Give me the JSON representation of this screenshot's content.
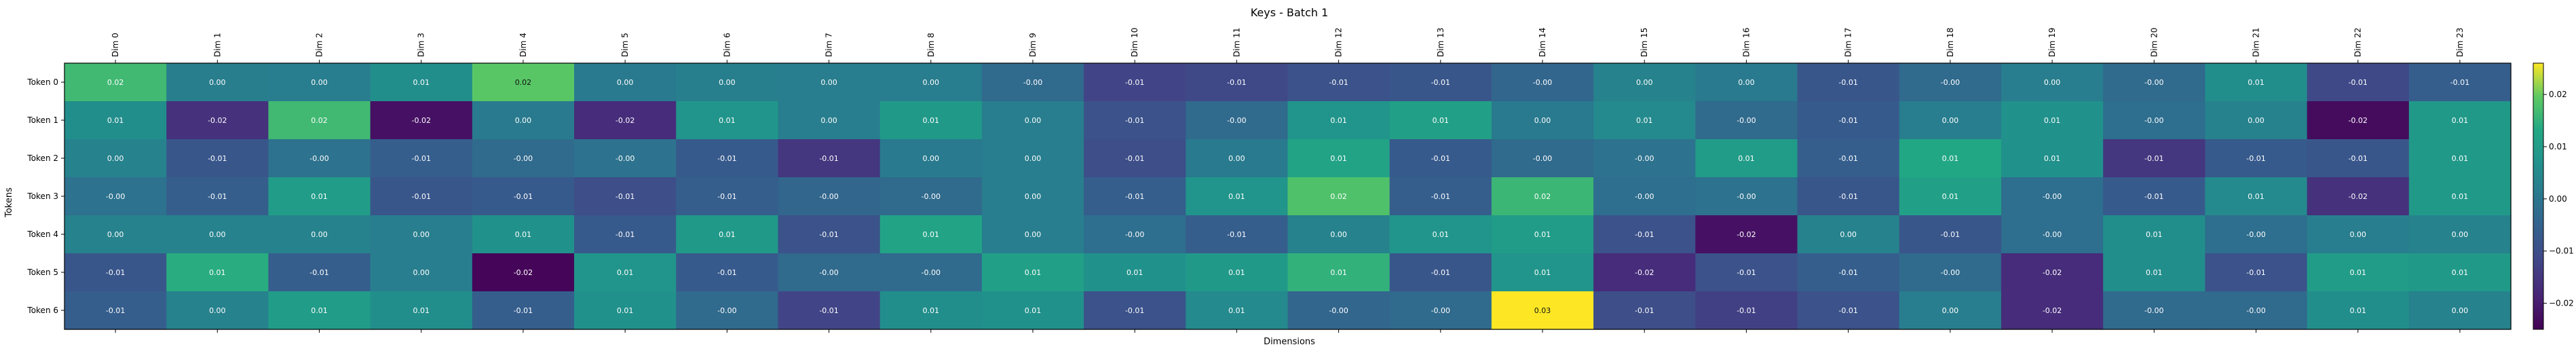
{
  "chart_data": {
    "type": "heatmap",
    "title": "Keys - Batch 1",
    "xlabel": "Dimensions",
    "ylabel": "Tokens",
    "x_labels": [
      "Dim 0",
      "Dim 1",
      "Dim 2",
      "Dim 3",
      "Dim 4",
      "Dim 5",
      "Dim 6",
      "Dim 7",
      "Dim 8",
      "Dim 9",
      "Dim 10",
      "Dim 11",
      "Dim 12",
      "Dim 13",
      "Dim 14",
      "Dim 15",
      "Dim 16",
      "Dim 17",
      "Dim 18",
      "Dim 19",
      "Dim 20",
      "Dim 21",
      "Dim 22",
      "Dim 23"
    ],
    "y_labels": [
      "Token 0",
      "Token 1",
      "Token 2",
      "Token 3",
      "Token 4",
      "Token 5",
      "Token 6"
    ],
    "values": [
      [
        0.0165,
        0.0021,
        0.0018,
        0.0062,
        0.019,
        0.0011,
        0.0024,
        0.0019,
        0.0017,
        -0.003,
        -0.012,
        -0.011,
        -0.009,
        -0.008,
        -0.004,
        0.003,
        0.001,
        -0.008,
        -0.003,
        0.002,
        -0.003,
        0.006,
        -0.011,
        -0.006
      ],
      [
        0.006,
        -0.016,
        0.0165,
        -0.022,
        0.001,
        -0.017,
        0.008,
        0.002,
        0.009,
        0.002,
        -0.009,
        -0.003,
        0.008,
        0.011,
        0.001,
        0.005,
        -0.003,
        -0.007,
        0.002,
        0.007,
        -0.002,
        0.003,
        -0.023,
        0.009
      ],
      [
        0.003,
        -0.008,
        -0.001,
        -0.006,
        -0.003,
        -0.001,
        -0.007,
        -0.015,
        0.001,
        0.002,
        -0.01,
        0.001,
        0.012,
        -0.007,
        -0.003,
        -0.001,
        0.01,
        -0.006,
        0.013,
        0.007,
        -0.015,
        -0.007,
        -0.008,
        0.009
      ],
      [
        -0.001,
        -0.006,
        0.01,
        -0.008,
        -0.007,
        -0.01,
        -0.006,
        -0.004,
        -0.003,
        0.002,
        -0.006,
        0.008,
        0.018,
        -0.006,
        0.016,
        -0.002,
        -0.001,
        -0.008,
        0.011,
        -0.002,
        -0.007,
        0.005,
        -0.016,
        0.009
      ],
      [
        0.003,
        0.003,
        0.003,
        0.002,
        0.007,
        -0.007,
        0.009,
        -0.009,
        0.012,
        0.002,
        -0.002,
        -0.006,
        0.003,
        0.008,
        0.01,
        -0.009,
        -0.022,
        0.003,
        -0.008,
        -0.002,
        0.006,
        -0.002,
        0.002,
        0.003
      ],
      [
        -0.008,
        0.014,
        -0.006,
        0.002,
        -0.024,
        0.008,
        -0.007,
        -0.003,
        -0.003,
        0.011,
        0.007,
        0.009,
        0.015,
        -0.008,
        0.008,
        -0.017,
        -0.009,
        -0.006,
        -0.003,
        -0.017,
        0.006,
        -0.009,
        0.01,
        0.009
      ],
      [
        -0.006,
        0.003,
        0.01,
        0.006,
        -0.006,
        0.007,
        -0.003,
        -0.012,
        0.006,
        0.007,
        -0.009,
        0.005,
        -0.004,
        -0.003,
        0.026,
        -0.01,
        -0.013,
        -0.009,
        0.002,
        -0.017,
        -0.003,
        -0.003,
        0.006,
        0.003
      ]
    ],
    "value_range": [
      -0.025,
      0.026
    ],
    "colormap": "viridis",
    "colorbar_ticks": [
      0.02,
      0.01,
      0.0,
      -0.01,
      -0.02
    ],
    "colorbar_tick_labels": [
      "0.02",
      "0.01",
      "0.00",
      "−0.01",
      "−0.02"
    ],
    "cell_label_decimals": 2,
    "grid": false
  }
}
